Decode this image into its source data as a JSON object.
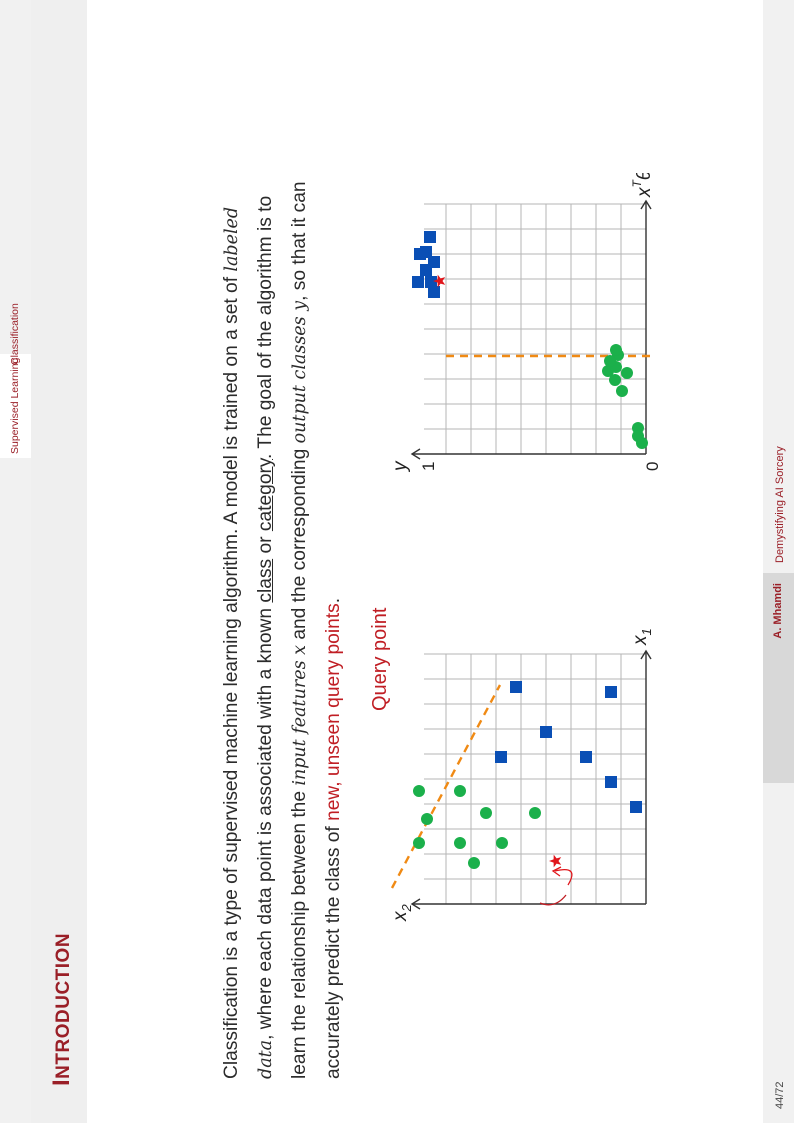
{
  "nav": {
    "part": "Supervised Learning",
    "section": "Classification"
  },
  "title": {
    "first_letter": "I",
    "rest": "NTRODUCTION"
  },
  "body": {
    "p1": "Classification is a type of supervised machine learning algorithm. A model is trained on a set of ",
    "labeled_data": "labeled data",
    "p2": ", where each data point is associated with a known ",
    "class": "class",
    "or": " or ",
    "category": "category",
    "p3": ". The goal of the algorithm is to learn the relationship between the ",
    "input_features": "input features",
    "x_var": " x",
    "p4": " and the corresponding ",
    "output_classes": "output classes",
    "y_var": " y",
    "p5": ", so that it can accurately predict the class of ",
    "new_unseen": "new, unseen query points",
    "end": "."
  },
  "figure_left": {
    "x_axis_label": "x",
    "x_axis_sub": "1",
    "y_axis_label": "x",
    "y_axis_sub": "2",
    "query_label": "Query point"
  },
  "figure_right": {
    "y_axis_label": "y",
    "tick_one": "1",
    "tick_zero": "0",
    "x_axis_label": "x",
    "x_axis_sup": "T",
    "x_axis_theta": "θ"
  },
  "footer": {
    "page": "44/72",
    "author": "A. Mhamdi",
    "talk": "Demystifying AI Sorcery"
  },
  "colors": {
    "accent": "#9a1f27",
    "blue_class": "#0a4fb5",
    "green_class": "#1bb04b",
    "boundary": "#f08a14",
    "query": "#e0161b"
  }
}
